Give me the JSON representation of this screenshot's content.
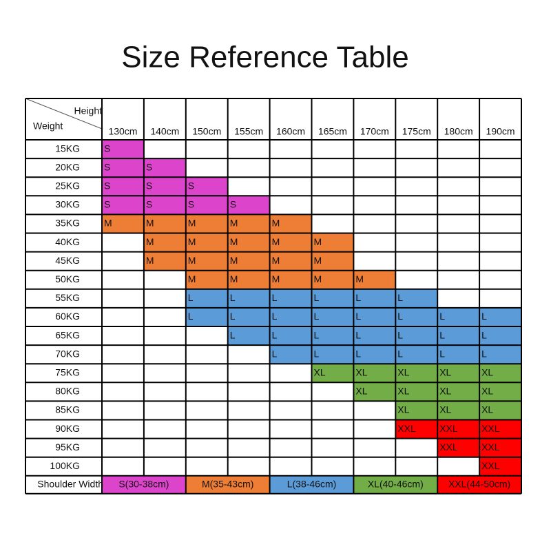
{
  "title": "Size Reference Table",
  "table": {
    "corner": {
      "column_label": "Height",
      "row_label": "Weight"
    },
    "columns": [
      "130cm",
      "140cm",
      "150cm",
      "155cm",
      "160cm",
      "165cm",
      "170cm",
      "175cm",
      "180cm",
      "190cm"
    ],
    "size_colors": {
      "S": "#dd44cc",
      "M": "#ee7d35",
      "L": "#5b9bd8",
      "XL": "#72ad47",
      "XXL": "#ff0000"
    },
    "rows": [
      {
        "label": "15KG",
        "cells": [
          "S",
          null,
          null,
          null,
          null,
          null,
          null,
          null,
          null,
          null
        ]
      },
      {
        "label": "20KG",
        "cells": [
          "S",
          "S",
          null,
          null,
          null,
          null,
          null,
          null,
          null,
          null
        ]
      },
      {
        "label": "25KG",
        "cells": [
          "S",
          "S",
          "S",
          null,
          null,
          null,
          null,
          null,
          null,
          null
        ]
      },
      {
        "label": "30KG",
        "cells": [
          "S",
          "S",
          "S",
          "S",
          null,
          null,
          null,
          null,
          null,
          null
        ]
      },
      {
        "label": "35KG",
        "cells": [
          "M",
          "M",
          "M",
          "M",
          "M",
          null,
          null,
          null,
          null,
          null
        ]
      },
      {
        "label": "40KG",
        "cells": [
          null,
          "M",
          "M",
          "M",
          "M",
          "M",
          null,
          null,
          null,
          null
        ]
      },
      {
        "label": "45KG",
        "cells": [
          null,
          "M",
          "M",
          "M",
          "M",
          "M",
          null,
          null,
          null,
          null
        ]
      },
      {
        "label": "50KG",
        "cells": [
          null,
          null,
          "M",
          "M",
          "M",
          "M",
          "M",
          null,
          null,
          null
        ]
      },
      {
        "label": "55KG",
        "cells": [
          null,
          null,
          "L",
          "L",
          "L",
          "L",
          "L",
          "L",
          null,
          null
        ]
      },
      {
        "label": "60KG",
        "cells": [
          null,
          null,
          "L",
          "L",
          "L",
          "L",
          "L",
          "L",
          "L",
          "L"
        ]
      },
      {
        "label": "65KG",
        "cells": [
          null,
          null,
          null,
          "L",
          "L",
          "L",
          "L",
          "L",
          "L",
          "L"
        ]
      },
      {
        "label": "70KG",
        "cells": [
          null,
          null,
          null,
          null,
          "L",
          "L",
          "L",
          "L",
          "L",
          "L"
        ]
      },
      {
        "label": "75KG",
        "cells": [
          null,
          null,
          null,
          null,
          null,
          "XL",
          "XL",
          "XL",
          "XL",
          "XL"
        ]
      },
      {
        "label": "80KG",
        "cells": [
          null,
          null,
          null,
          null,
          null,
          null,
          "XL",
          "XL",
          "XL",
          "XL"
        ]
      },
      {
        "label": "85KG",
        "cells": [
          null,
          null,
          null,
          null,
          null,
          null,
          null,
          "XL",
          "XL",
          "XL"
        ]
      },
      {
        "label": "90KG",
        "cells": [
          null,
          null,
          null,
          null,
          null,
          null,
          null,
          "XXL",
          "XXL",
          "XXL"
        ]
      },
      {
        "label": "95KG",
        "cells": [
          null,
          null,
          null,
          null,
          null,
          null,
          null,
          null,
          "XXL",
          "XXL"
        ]
      },
      {
        "label": "100KG",
        "cells": [
          null,
          null,
          null,
          null,
          null,
          null,
          null,
          null,
          null,
          "XXL"
        ]
      }
    ],
    "footer": {
      "label": "Shoulder Width",
      "items": [
        {
          "text": "S(30-38cm)",
          "color": "#dd44cc"
        },
        {
          "text": "M(35-43cm)",
          "color": "#ee7d35"
        },
        {
          "text": "L(38-46cm)",
          "color": "#5b9bd8"
        },
        {
          "text": "XL(40-46cm)",
          "color": "#72ad47"
        },
        {
          "text": "XXL(44-50cm)",
          "color": "#ff0000"
        }
      ]
    }
  }
}
